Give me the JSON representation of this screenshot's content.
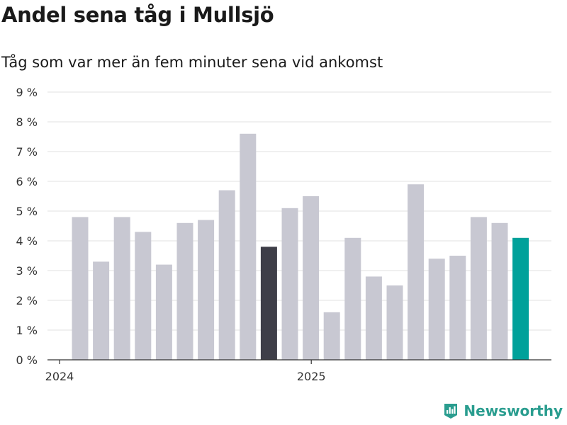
{
  "chart_data": {
    "type": "bar",
    "title": "Andel sena tåg i Mullsjö",
    "subtitle": "Tåg som var mer än fem minuter sena vid ankomst",
    "xlabel": "",
    "ylabel": "",
    "ylim": [
      0,
      9
    ],
    "ytick_labels": [
      "0 %",
      "1 %",
      "2 %",
      "3 %",
      "4 %",
      "5 %",
      "6 %",
      "7 %",
      "8 %",
      "9 %"
    ],
    "x_tick_labels": [
      {
        "label": "2024",
        "index": 0
      },
      {
        "label": "2025",
        "index": 12
      }
    ],
    "grid": true,
    "categories": [
      "2024-01",
      "2024-02",
      "2024-03",
      "2024-04",
      "2024-05",
      "2024-06",
      "2024-07",
      "2024-08",
      "2024-09",
      "2024-10",
      "2024-11",
      "2024-12",
      "2025-01",
      "2025-02",
      "2025-03",
      "2025-04",
      "2025-05",
      "2025-06",
      "2025-07",
      "2025-08",
      "2025-09",
      "2025-10"
    ],
    "values": [
      4.8,
      3.3,
      4.8,
      4.3,
      3.2,
      4.6,
      4.7,
      5.7,
      7.6,
      3.8,
      5.1,
      5.5,
      1.6,
      4.1,
      2.8,
      2.5,
      5.9,
      3.4,
      3.5,
      4.8,
      4.6,
      4.1
    ],
    "bar_colors": {
      "default": "#c8c8d2",
      "highlight_prev": "#3e3e48",
      "highlight_current": "#00a19a"
    },
    "highlight_prev_index": 9,
    "highlight_current_index": 21
  },
  "brand": {
    "name": "Newsworthy",
    "icon": "newsworthy-logo-icon",
    "color": "#2a9d8f"
  }
}
